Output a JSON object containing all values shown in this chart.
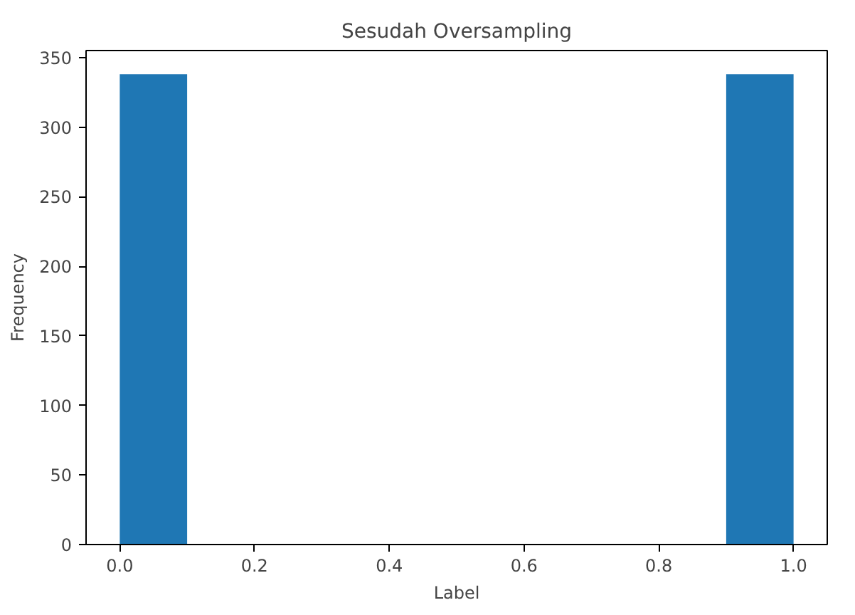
{
  "chart_data": {
    "type": "histogram",
    "title": "Sesudah Oversampling",
    "xlabel": "Label",
    "ylabel": "Frequency",
    "bins": [
      0.0,
      0.1,
      0.2,
      0.3,
      0.4,
      0.5,
      0.6,
      0.7,
      0.8,
      0.9,
      1.0
    ],
    "values": [
      338,
      0,
      0,
      0,
      0,
      0,
      0,
      0,
      0,
      338
    ],
    "color": "#1f77b4",
    "xlim": [
      -0.05,
      1.05
    ],
    "ylim": [
      0,
      355
    ],
    "xticks": [
      {
        "value": 0,
        "label": "0.0"
      },
      {
        "value": 0.2,
        "label": "0.2"
      },
      {
        "value": 0.4,
        "label": "0.4"
      },
      {
        "value": 0.6,
        "label": "0.6"
      },
      {
        "value": 0.8,
        "label": "0.8"
      },
      {
        "value": 1,
        "label": "1.0"
      }
    ],
    "yticks": [
      0,
      50,
      100,
      150,
      200,
      250,
      300,
      350
    ],
    "grid": false
  }
}
